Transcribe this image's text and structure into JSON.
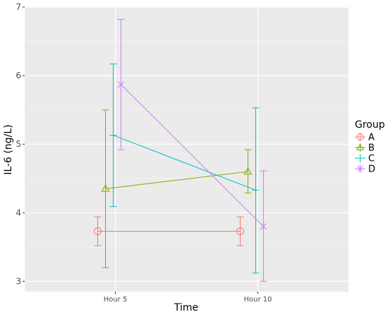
{
  "chart_data": {
    "type": "line",
    "xlabel": "Time",
    "ylabel": "IL-6 (ng/L)",
    "categories": [
      "Hour 5",
      "Hour 10"
    ],
    "ylim": [
      2.85,
      7.0
    ],
    "yticks": [
      3,
      4,
      5,
      6,
      7
    ],
    "grid": true,
    "legend_title": "Group",
    "legend_position": "right",
    "series": [
      {
        "name": "A",
        "color": "#F8766D",
        "marker": "circle",
        "values": [
          3.73,
          3.73
        ],
        "lower": [
          3.52,
          3.52
        ],
        "upper": [
          3.94,
          3.94
        ]
      },
      {
        "name": "B",
        "color": "#7CAE00",
        "marker": "triangle",
        "values": [
          4.35,
          4.6
        ],
        "lower": [
          3.2,
          4.29
        ],
        "upper": [
          5.5,
          4.92
        ]
      },
      {
        "name": "C",
        "color": "#00BFC4",
        "marker": "plus",
        "values": [
          5.13,
          4.33
        ],
        "lower": [
          4.09,
          3.12
        ],
        "upper": [
          6.17,
          5.53
        ]
      },
      {
        "name": "D",
        "color": "#C77CFF",
        "marker": "cross",
        "values": [
          5.87,
          3.8
        ],
        "lower": [
          4.92,
          3.0
        ],
        "upper": [
          6.82,
          4.61
        ]
      }
    ]
  }
}
